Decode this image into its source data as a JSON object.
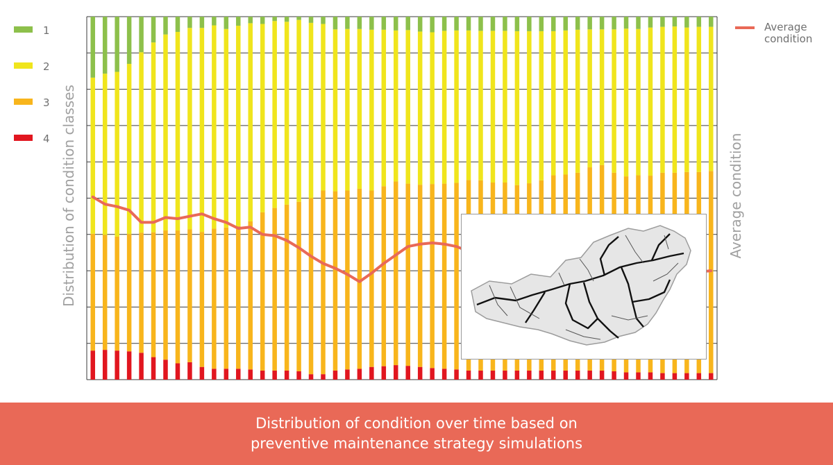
{
  "caption": {
    "line1": "Distribution of condition over time based on",
    "line2": "preventive maintenance strategy simulations"
  },
  "colors": {
    "class_1": "#8dc04b",
    "class_2": "#f0e51c",
    "class_3": "#f8b51c",
    "class_4": "#e1161f",
    "average_line": "#e96957",
    "grid": "#3a3a3a",
    "label_gray": "#a0a0a0",
    "caption_bg": "#e96957"
  },
  "map_inset": {
    "icon": "rail-network-map-icon"
  },
  "chart_data": {
    "type": "bar",
    "stacked": true,
    "normalized_100_percent": true,
    "title": "",
    "ylabel": "Distribution of condition classes",
    "y2label": "Average condition",
    "xlabel": "",
    "ylim": [
      0,
      100
    ],
    "y2lim": [
      1,
      4
    ],
    "grid": true,
    "legend_position": "top-left",
    "legend": [
      "1",
      "2",
      "3",
      "4"
    ],
    "line_legend": "Average condition",
    "line_legend_position": "top-right",
    "series": [
      {
        "name": "4",
        "values": [
          8,
          8.2,
          8,
          7.8,
          7.4,
          6.2,
          5.5,
          4.5,
          4.8,
          3.5,
          3,
          3,
          3,
          2.8,
          2.5,
          2.5,
          2.5,
          2.3,
          1.5,
          1.5,
          2.5,
          2.8,
          3,
          3.5,
          3.7,
          4,
          3.8,
          3.5,
          3.2,
          3,
          2.8,
          2.5,
          2.5,
          2.5,
          2.5,
          2.5,
          2.5,
          2.5,
          2.5,
          2.5,
          2.5,
          2.5,
          2.5,
          2.3,
          2,
          2,
          2,
          1.8,
          1.8,
          1.8,
          1.8,
          1.8
        ]
      },
      {
        "name": "3",
        "values": [
          32.2,
          31.7,
          31.4,
          32.3,
          33.1,
          34.4,
          35.6,
          36.6,
          36.6,
          37.2,
          38.6,
          38.9,
          39.3,
          40.8,
          43.6,
          44.8,
          45.7,
          46.7,
          48.5,
          50.6,
          49.4,
          49.3,
          49.6,
          48.6,
          49.6,
          50.6,
          50.2,
          50.2,
          50.7,
          51,
          51.4,
          52.5,
          52.4,
          51.8,
          51.8,
          51.1,
          51.6,
          52.4,
          53.8,
          54,
          54.5,
          56,
          56.6,
          54.7,
          54,
          54.3,
          54.2,
          55.2,
          55.2,
          55.4,
          55.4,
          55.7
        ]
      },
      {
        "name": "2",
        "values": [
          43,
          44.4,
          45.4,
          46.9,
          49.7,
          52.3,
          54,
          54.7,
          55.5,
          56.2,
          56,
          54.7,
          55.2,
          54.6,
          51.9,
          51.5,
          50.4,
          50.1,
          48.3,
          45.9,
          44.6,
          44.5,
          44,
          44.3,
          43.1,
          41.6,
          42.3,
          42.2,
          41.8,
          42.1,
          42,
          41.2,
          41.2,
          41.8,
          41.8,
          42.4,
          41.9,
          41.1,
          39.7,
          39.7,
          39.4,
          38,
          37.4,
          39.5,
          40.7,
          40.3,
          40.8,
          40.2,
          40.3,
          39.8,
          40,
          39.7
        ]
      },
      {
        "name": "1",
        "values": [
          16.8,
          15.7,
          15.2,
          13,
          9.8,
          7.1,
          4.9,
          4.2,
          3.1,
          3.1,
          2.4,
          3.4,
          2.5,
          1.8,
          2,
          1.2,
          1.4,
          0.9,
          1.7,
          2,
          3.5,
          3.4,
          3.4,
          3.6,
          3.6,
          3.8,
          3.7,
          4.1,
          4.3,
          3.9,
          3.8,
          3.8,
          3.9,
          3.9,
          3.9,
          4,
          4,
          4,
          4,
          3.8,
          3.6,
          3.5,
          3.5,
          3.5,
          3.3,
          3.4,
          3,
          2.8,
          2.7,
          3,
          2.8,
          2.8
        ]
      }
    ],
    "average_condition": {
      "name": "Average condition",
      "values": [
        2.51,
        2.45,
        2.43,
        2.4,
        2.3,
        2.3,
        2.34,
        2.33,
        2.35,
        2.37,
        2.33,
        2.3,
        2.25,
        2.26,
        2.2,
        2.19,
        2.15,
        2.09,
        2.02,
        1.96,
        1.92,
        1.87,
        1.81,
        1.88,
        1.96,
        2.03,
        2.1,
        2.12,
        2.13,
        2.12,
        2.1,
        2.06,
        2.03,
        2.05,
        2.04,
        2.03,
        2.0,
        1.94,
        1.87,
        1.81,
        1.8,
        1.84,
        1.88,
        1.88,
        1.9,
        1.88,
        1.89,
        1.88,
        1.87,
        1.89,
        1.89,
        1.9
      ]
    }
  }
}
